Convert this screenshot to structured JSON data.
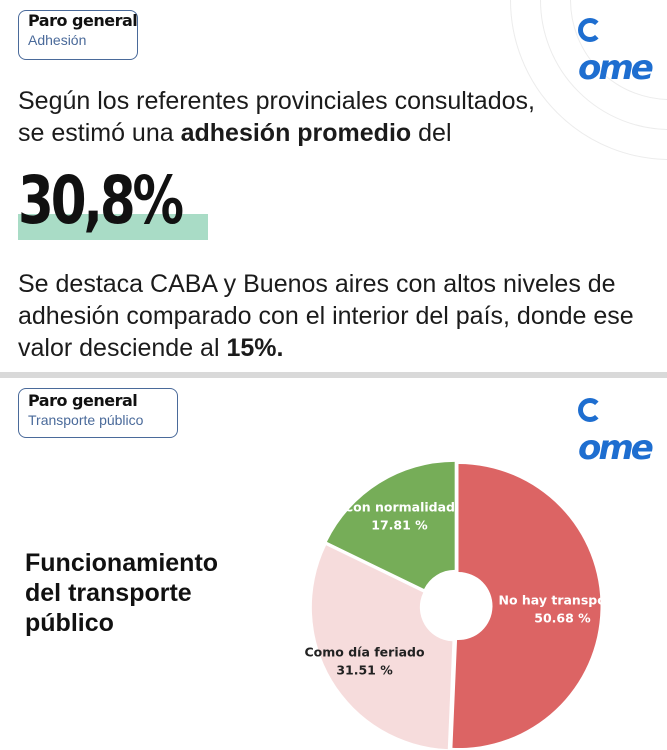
{
  "card1": {
    "tag": {
      "title": "Paro general",
      "subtitle": "Adhesión"
    },
    "logo": "ome",
    "lead_part1": "Según los referentes provinciales consultados,",
    "lead_part2": "se estimó una",
    "lead_bold": "adhesión promedio",
    "lead_part3": "del",
    "big_value": "30,8%",
    "foot_part1": "Se destaca CABA y Buenos aires con altos niveles de adhesión comparado con el interior del país, donde ese valor desciende al",
    "foot_bold": "15%.",
    "highlight_color": "#a9dcc6"
  },
  "card2": {
    "tag": {
      "title": "Paro general",
      "subtitle": "Transporte público"
    },
    "logo": "ome",
    "subject_line1": "Funcionamiento",
    "subject_line2": "del transporte",
    "subject_line3": "público"
  },
  "chart_data": {
    "type": "pie",
    "donut": true,
    "slices": [
      {
        "label": "No hay transporte",
        "value": 50.68,
        "display": "50.68 %",
        "color": "#dc6464"
      },
      {
        "label": "Como día feriado",
        "value": 31.51,
        "display": "31.51 %",
        "color": "#f6dcdc"
      },
      {
        "label": "Con normalidad",
        "value": 17.81,
        "display": "17.81 %",
        "color": "#76ad58"
      }
    ]
  }
}
